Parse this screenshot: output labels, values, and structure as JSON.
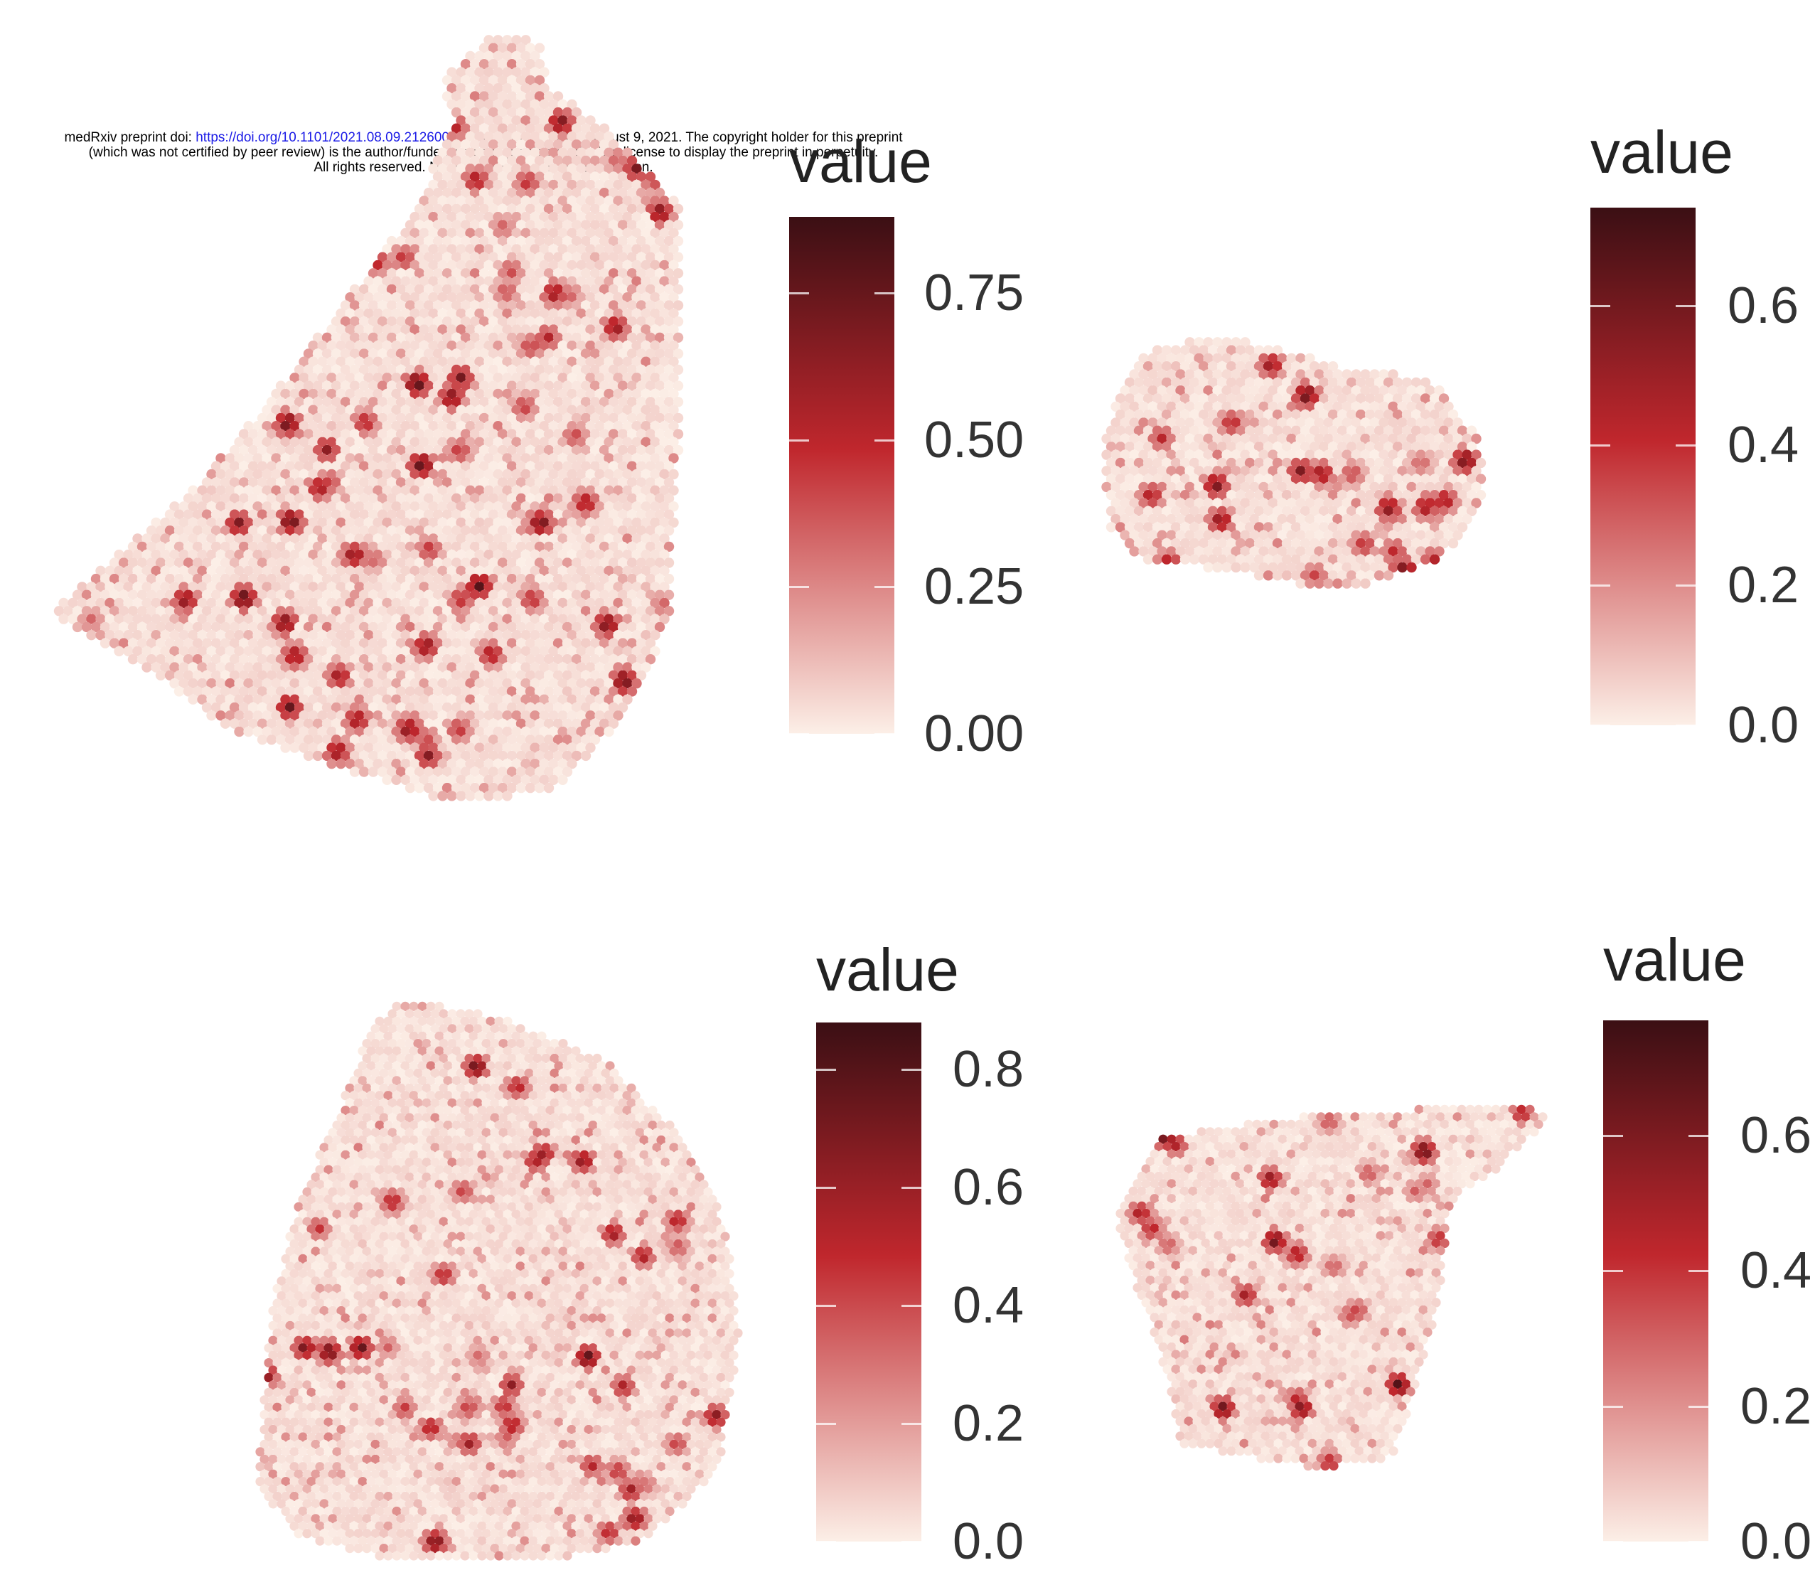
{
  "header": {
    "line1_pre": "medRxiv preprint doi: ",
    "doi": "https://doi.org/10.1101/2021.08.09.21260015",
    "line1_post": "; this version posted August 9, 2021. The copyright holder for this preprint",
    "line2": "(which was not certified by peer review) is the author/funder, who has granted medRxiv a license to display the preprint in perpetuity.",
    "line3": "All rights reserved. No reuse allowed without permission."
  },
  "colors": {
    "low": "#fcefe7",
    "mid": "#c0272d",
    "high": "#3b0f14"
  },
  "chart_data": [
    {
      "type": "heatmap",
      "legend_title": "value",
      "ticks": [
        0.0,
        0.25,
        0.5,
        0.75
      ],
      "tick_labels": [
        "0.00",
        "0.25",
        "0.50",
        "0.75"
      ],
      "range": [
        0,
        0.88
      ],
      "description_shape": "tissue-section",
      "hotspot_count": 60,
      "seed": 11
    },
    {
      "type": "heatmap",
      "legend_title": "value",
      "ticks": [
        0.0,
        0.2,
        0.4,
        0.6
      ],
      "tick_labels": [
        "0.0",
        "0.2",
        "0.4",
        "0.6"
      ],
      "range": [
        0,
        0.74
      ],
      "hotspot_count": 22,
      "seed": 23
    },
    {
      "type": "heatmap",
      "legend_title": "value",
      "ticks": [
        0.0,
        0.2,
        0.4,
        0.6,
        0.8
      ],
      "tick_labels": [
        "0.0",
        "0.2",
        "0.4",
        "0.6",
        "0.8"
      ],
      "range": [
        0,
        0.88
      ],
      "hotspot_count": 40,
      "seed": 37
    },
    {
      "type": "heatmap",
      "legend_title": "value",
      "ticks": [
        0.0,
        0.2,
        0.4,
        0.6
      ],
      "tick_labels": [
        "0.0",
        "0.2",
        "0.4",
        "0.6"
      ],
      "range": [
        0,
        0.77
      ],
      "hotspot_count": 24,
      "seed": 53
    }
  ]
}
